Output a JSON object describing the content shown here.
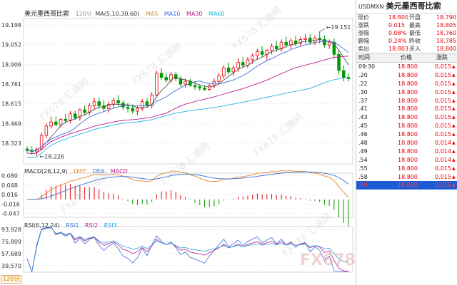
{
  "chart_data": {
    "type": "candlestick",
    "title": "美元墨西哥比索",
    "period": "120分",
    "price_axis": {
      "ticks": [
        "19.198",
        "19.052",
        "18.906",
        "18.761",
        "18.615",
        "18.469",
        "18.323"
      ],
      "ylim": [
        18.17,
        19.245
      ]
    },
    "annotations": {
      "high": "19.151",
      "low": "18.226"
    },
    "ma_legend": {
      "label": "MA(5,10,30,60)",
      "items": [
        "MA5",
        "MA10",
        "MA30",
        "MA60"
      ]
    },
    "colors": {
      "up": "#e8000b",
      "down": "#009a00",
      "ma5": "#555555",
      "ma10": "#3a6fd8",
      "ma30": "#c01890",
      "ma60": "#28b4e0"
    },
    "candles": [
      [
        18.28,
        18.3,
        18.25,
        18.27
      ],
      [
        18.27,
        18.3,
        18.24,
        18.26
      ],
      [
        18.26,
        18.29,
        18.23,
        18.28
      ],
      [
        18.28,
        18.4,
        18.27,
        18.38
      ],
      [
        18.38,
        18.47,
        18.36,
        18.45
      ],
      [
        18.45,
        18.52,
        18.43,
        18.48
      ],
      [
        18.48,
        18.52,
        18.45,
        18.46
      ],
      [
        18.46,
        18.51,
        18.44,
        18.5
      ],
      [
        18.5,
        18.54,
        18.47,
        18.49
      ],
      [
        18.49,
        18.56,
        18.47,
        18.54
      ],
      [
        18.54,
        18.56,
        18.5,
        18.51
      ],
      [
        18.51,
        18.58,
        18.49,
        18.57
      ],
      [
        18.57,
        18.6,
        18.53,
        18.55
      ],
      [
        18.55,
        18.62,
        18.53,
        18.6
      ],
      [
        18.6,
        18.66,
        18.57,
        18.63
      ],
      [
        18.63,
        18.66,
        18.58,
        18.6
      ],
      [
        18.6,
        18.64,
        18.56,
        18.58
      ],
      [
        18.58,
        18.63,
        18.55,
        18.61
      ],
      [
        18.61,
        18.66,
        18.58,
        18.64
      ],
      [
        18.64,
        18.68,
        18.6,
        18.62
      ],
      [
        18.62,
        18.64,
        18.57,
        18.59
      ],
      [
        18.59,
        18.62,
        18.55,
        18.58
      ],
      [
        18.58,
        18.61,
        18.54,
        18.56
      ],
      [
        18.56,
        18.6,
        18.53,
        18.58
      ],
      [
        18.58,
        18.65,
        18.56,
        18.63
      ],
      [
        18.63,
        18.66,
        18.58,
        18.6
      ],
      [
        18.6,
        18.7,
        18.58,
        18.68
      ],
      [
        18.68,
        18.86,
        18.67,
        18.84
      ],
      [
        18.84,
        18.88,
        18.79,
        18.81
      ],
      [
        18.81,
        18.84,
        18.77,
        18.79
      ],
      [
        18.79,
        18.85,
        18.77,
        18.83
      ],
      [
        18.83,
        18.85,
        18.78,
        18.8
      ],
      [
        18.8,
        18.82,
        18.74,
        18.76
      ],
      [
        18.76,
        18.8,
        18.73,
        18.78
      ],
      [
        18.78,
        18.8,
        18.74,
        18.75
      ],
      [
        18.75,
        18.78,
        18.72,
        18.74
      ],
      [
        18.74,
        18.76,
        18.71,
        18.73
      ],
      [
        18.73,
        18.75,
        18.71,
        18.72
      ],
      [
        18.72,
        18.76,
        18.71,
        18.75
      ],
      [
        18.75,
        18.8,
        18.73,
        18.78
      ],
      [
        18.78,
        18.84,
        18.76,
        18.82
      ],
      [
        18.82,
        18.9,
        18.8,
        18.88
      ],
      [
        18.88,
        18.92,
        18.83,
        18.85
      ],
      [
        18.85,
        18.9,
        18.82,
        18.88
      ],
      [
        18.88,
        18.95,
        18.85,
        18.92
      ],
      [
        18.92,
        18.96,
        18.88,
        18.9
      ],
      [
        18.9,
        18.96,
        18.88,
        18.94
      ],
      [
        18.94,
        18.99,
        18.91,
        18.97
      ],
      [
        18.97,
        19.02,
        18.94,
        19.0
      ],
      [
        19.0,
        19.04,
        18.96,
        18.98
      ],
      [
        18.98,
        19.02,
        18.94,
        19.01
      ],
      [
        19.01,
        19.06,
        18.98,
        19.04
      ],
      [
        19.04,
        19.08,
        19.0,
        19.02
      ],
      [
        19.02,
        19.09,
        19.0,
        19.07
      ],
      [
        19.07,
        19.11,
        19.03,
        19.05
      ],
      [
        19.05,
        19.1,
        19.02,
        19.08
      ],
      [
        19.08,
        19.12,
        19.04,
        19.06
      ],
      [
        19.06,
        19.11,
        19.04,
        19.09
      ],
      [
        19.09,
        19.13,
        19.06,
        19.1
      ],
      [
        19.1,
        19.13,
        19.05,
        19.07
      ],
      [
        19.07,
        19.12,
        19.05,
        19.1
      ],
      [
        19.1,
        19.15,
        19.06,
        19.09
      ],
      [
        19.09,
        19.12,
        19.03,
        19.05
      ],
      [
        19.05,
        19.09,
        19.02,
        19.07
      ],
      [
        19.07,
        19.1,
        18.95,
        18.98
      ],
      [
        18.98,
        19.01,
        18.83,
        18.86
      ],
      [
        18.86,
        18.9,
        18.78,
        18.81
      ],
      [
        18.81,
        18.84,
        18.78,
        18.8
      ]
    ],
    "macd": {
      "label": "MACD(26,12,9)",
      "items": [
        "DIFF",
        "DEA",
        "MACD"
      ],
      "ticks": [
        "0.080",
        "0.048",
        "0.016",
        "-0.016",
        "-0.047"
      ],
      "ylim": [
        -0.06,
        0.088
      ]
    },
    "rsi": {
      "label": "RSI(6,12,24)",
      "items": [
        "RSI1",
        "RSI2",
        "RSI3"
      ],
      "ticks": [
        "93.928",
        "75.809",
        "57.689",
        "39.570"
      ],
      "ylim": [
        30,
        98
      ]
    }
  },
  "quote": {
    "symbol": "USDMXN",
    "name": "美元墨西哥比索",
    "rows": [
      {
        "l1": "现价",
        "v1": "18.800",
        "l2": "开盘",
        "v2": "18.790"
      },
      {
        "l1": "涨跌",
        "v1": "0.015",
        "l2": "最高",
        "v2": "18.805"
      },
      {
        "l1": "涨幅",
        "v1": "0.08%",
        "l2": "最低",
        "v2": "18.760"
      },
      {
        "l1": "震幅",
        "v1": "0.24%",
        "l2": "昨收",
        "v2": "18.785"
      },
      {
        "l1": "卖出",
        "v1": "18.803",
        "l2": "买入",
        "v2": "18.800"
      }
    ],
    "tick_header": {
      "time": "时间",
      "price": "价格",
      "change": "涨跌"
    },
    "ticks": [
      {
        "time": "09:30",
        "price": "18.800",
        "change": "0.015"
      },
      {
        "time": ".20",
        "price": "18.800",
        "change": "0.015"
      },
      {
        "time": ".22",
        "price": "18.800",
        "change": "0.015"
      },
      {
        "time": ".30",
        "price": "18.800",
        "change": "0.015"
      },
      {
        "time": ".37",
        "price": "18.800",
        "change": "0.015"
      },
      {
        "time": ".41",
        "price": "18.800",
        "change": "0.015"
      },
      {
        "time": ".43",
        "price": "18.800",
        "change": "0.015"
      },
      {
        "time": ".45",
        "price": "18.800",
        "change": "0.015"
      },
      {
        "time": ".46",
        "price": "18.800",
        "change": "0.015"
      },
      {
        "time": ".48",
        "price": "18.800",
        "change": "0.014"
      },
      {
        "time": ".49",
        "price": "18.800",
        "change": "0.014"
      },
      {
        "time": ".54",
        "price": "18.800",
        "change": "0.014"
      },
      {
        "time": ".55",
        "price": "18.800",
        "change": "0.015"
      },
      {
        "time": ".58",
        "price": "18.800",
        "change": "0.015"
      },
      {
        "time": ".59",
        "price": "18.800",
        "change": "0.015"
      }
    ],
    "selected_tick": 14
  },
  "watermark": "FX678 汇通网"
}
